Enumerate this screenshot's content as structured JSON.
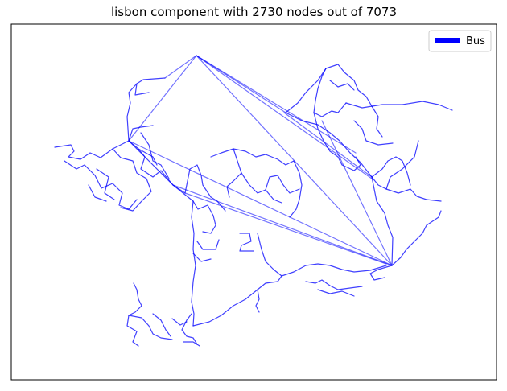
{
  "chart_data": {
    "type": "network",
    "title": "lisbon component with 2730 nodes out of 7073",
    "component_nodes": 2730,
    "total_nodes": 7073,
    "xlabel": "",
    "ylabel": "",
    "axis_ticks": false,
    "grid": false,
    "legend_position": "top-right",
    "series": [
      {
        "name": "Bus",
        "color": "#0000ff"
      }
    ]
  }
}
